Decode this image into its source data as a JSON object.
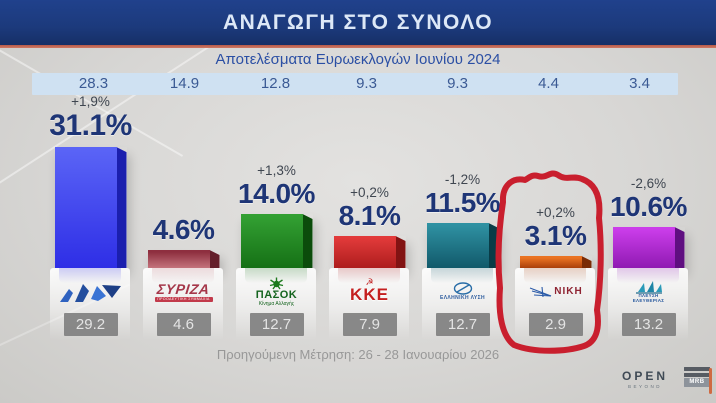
{
  "header": {
    "title": "ΑΝΑΓΩΓΗ ΣΤΟ ΣΥΝΟΛΟ"
  },
  "subtitle": "Αποτελέσματα Ευρωεκλογών Ιουνίου 2024",
  "footer": {
    "previous_measurement": "Προηγούμενη Μέτρηση: 26 - 28 Ιανουαρίου 2026"
  },
  "branding": {
    "channel": "OPEN",
    "channel_tagline": "BEYOND",
    "agency": "MRB"
  },
  "colors": {
    "header_bg": "#1c3a7c",
    "header_underline": "#c4664f",
    "euro_band_bg": "#cfe1f2",
    "value_navy": "#1e3576",
    "prev_box_bg": "#8f8f8f",
    "annotation_red": "#c91f2e"
  },
  "annotation": {
    "type": "hand-drawn red circle",
    "target": "ΝΙΚΗ column",
    "color": "#c91f2e"
  },
  "chart_data": {
    "type": "bar",
    "title": "ΑΝΑΓΩΓΗ ΣΤΟ ΣΥΝΟΛΟ",
    "subtitle": "Αποτελέσματα Ευρωεκλογών Ιουνίου 2024",
    "unit": "%",
    "ylim": [
      0,
      33
    ],
    "categories": [
      "ΝΕΑ ΔΗΜΟΚΡΑΤΙΑ",
      "ΣΥΡΙΖΑ",
      "ΠΑΣΟΚ",
      "ΚΚΕ",
      "ΕΛΛΗΝΙΚΗ ΛΥΣΗ",
      "ΝΙΚΗ",
      "ΠΛΕΥΣΗ ΕΛΕΥΘΕΡΙΑΣ"
    ],
    "values": [
      31.1,
      4.6,
      14.0,
      8.1,
      11.5,
      3.1,
      10.6
    ],
    "euro_results_2024": [
      "28.3",
      "14.9",
      "12.8",
      "9.3",
      "9.3",
      "4.4",
      "3.4"
    ],
    "previous_values": [
      "29.2",
      "4.6",
      "12.7",
      "7.9",
      "12.7",
      "2.9",
      "13.2"
    ],
    "deltas": [
      "+1,9%",
      "",
      "+1,3%",
      "+0,2%",
      "-1,2%",
      "+0,2%",
      "-2,6%"
    ],
    "parties": [
      {
        "name": "ΝΕΑ ΔΗΜΟΚΡΑΤΙΑ",
        "euro": "28.3",
        "delta": "+1,9%",
        "value": 31.1,
        "value_label": "31.1%",
        "previous": "29.2",
        "logo_text": "",
        "logo_subtext": "",
        "color_top": "#5a64f6",
        "color_bottom": "#2e2ee6",
        "color_side": "#1b1fae"
      },
      {
        "name": "ΣΥΡΙΖΑ",
        "euro": "14.9",
        "delta": "",
        "value": 4.6,
        "value_label": "4.6%",
        "previous": "4.6",
        "logo_text": "ΣΥΡΙΖΑ",
        "logo_subtext": "ΠΡΟΟΔΕΥΤΙΚΗ ΣΥΜΜΑΧΙΑ",
        "color_top": "#8e2f3f",
        "color_bottom": "#c4737c",
        "color_side": "#641f2b"
      },
      {
        "name": "ΠΑΣΟΚ",
        "euro": "12.8",
        "delta": "+1,3%",
        "value": 14.0,
        "value_label": "14.0%",
        "previous": "12.7",
        "logo_text": "ΠΑΣΟΚ",
        "logo_subtext": "Κίνημα Αλλαγής",
        "color_top": "#33a033",
        "color_bottom": "#157015",
        "color_side": "#0b4c0b"
      },
      {
        "name": "ΚΚΕ",
        "euro": "9.3",
        "delta": "+0,2%",
        "value": 8.1,
        "value_label": "8.1%",
        "previous": "7.9",
        "logo_text": "ΚΚΕ",
        "logo_icon": "☭",
        "logo_subtext": "",
        "color_top": "#e23a3a",
        "color_bottom": "#ad1d1d",
        "color_side": "#821313"
      },
      {
        "name": "ΕΛΛΗΝΙΚΗ ΛΥΣΗ",
        "euro": "9.3",
        "delta": "-1,2%",
        "value": 11.5,
        "value_label": "11.5%",
        "previous": "12.7",
        "logo_text": "ΕΛΛΗΝΙΚΗ ΛΥΣΗ",
        "logo_subtext": "",
        "color_top": "#2f91a2",
        "color_bottom": "#11596a",
        "color_side": "#093c47"
      },
      {
        "name": "ΝΙΚΗ",
        "euro": "4.4",
        "delta": "+0,2%",
        "value": 3.1,
        "value_label": "3.1%",
        "previous": "2.9",
        "highlighted": true,
        "logo_text": "ΝΙΚΗ",
        "logo_subtext": "",
        "color_top": "#ea7322",
        "color_bottom": "#a93f0a",
        "color_side": "#7a2b05"
      },
      {
        "name": "ΠΛΕΥΣΗ ΕΛΕΥΘΕΡΙΑΣ",
        "euro": "3.4",
        "delta": "-2,6%",
        "value": 10.6,
        "value_label": "10.6%",
        "previous": "13.2",
        "logo_text": "ΠΛΕΥΣΗ",
        "logo_subtext": "ΕΛΕΥΘΕΡΙΑΣ",
        "color_top": "#cb3dea",
        "color_bottom": "#8f1ab2",
        "color_side": "#5f0f80"
      }
    ]
  }
}
